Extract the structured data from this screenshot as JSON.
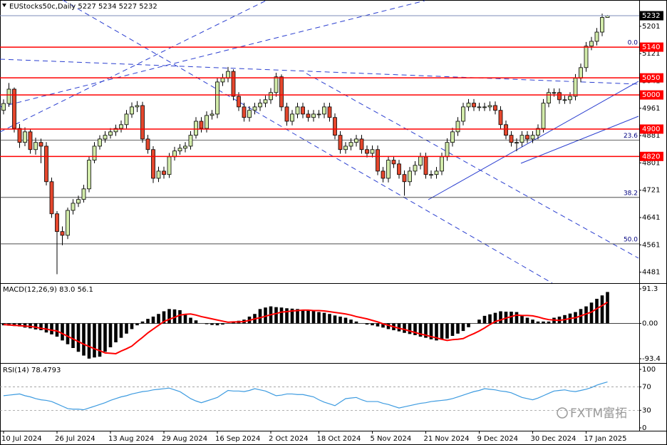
{
  "chart_data": [
    {
      "type": "candlestick",
      "title": "EUStocks50c,Daily  5227 5234 5227 5232",
      "categories": [
        "10 Jul 2024",
        null,
        null,
        null,
        null,
        null,
        null,
        null,
        null,
        null,
        "26 Jul 2024",
        null,
        null,
        null,
        null,
        null,
        null,
        null,
        null,
        null,
        "13 Aug 2024",
        null,
        null,
        null,
        null,
        null,
        null,
        null,
        null,
        null,
        "29 Aug 2024",
        null,
        null,
        null,
        null,
        null,
        null,
        null,
        null,
        null,
        "16 Sep 2024",
        null,
        null,
        null,
        null,
        null,
        null,
        null,
        null,
        null,
        "2 Oct 2024",
        null,
        null,
        null,
        null,
        null,
        null,
        null,
        null,
        "18 Oct 2024",
        null,
        null,
        null,
        null,
        null,
        null,
        null,
        null,
        null,
        "5 Nov 2024",
        null,
        null,
        null,
        null,
        null,
        null,
        null,
        null,
        null,
        "21 Nov 2024",
        null,
        null,
        null,
        null,
        null,
        null,
        null,
        null,
        null,
        "9 Dec 2024",
        null,
        null,
        null,
        null,
        null,
        null,
        null,
        null,
        null,
        "30 Dec 2024",
        null,
        null,
        null,
        null,
        null,
        null,
        null,
        null,
        null,
        "17 Jan 2025",
        null,
        null,
        null,
        null
      ],
      "open": [
        4955,
        4975,
        5017,
        4902,
        4861,
        4892,
        4840,
        4861,
        4850,
        4746,
        4652,
        4600,
        4589,
        4662,
        4683,
        4694,
        4725,
        4809,
        4850,
        4871,
        4882,
        4892,
        4902,
        4913,
        4944,
        4965,
        4969,
        4871,
        4840,
        4756,
        4777,
        4767,
        4819,
        4836,
        4844,
        4850,
        4882,
        4923,
        4902,
        4940,
        4944,
        5038,
        5049,
        5069,
        4996,
        4965,
        4934,
        4955,
        4965,
        4976,
        4986,
        5007,
        5053,
        4965,
        4923,
        4944,
        4965,
        4944,
        4934,
        4944,
        4944,
        4965,
        4934,
        4882,
        4840,
        4850,
        4861,
        4871,
        4840,
        4829,
        4840,
        4777,
        4756,
        4809,
        4798,
        4767,
        4746,
        4777,
        4794,
        4819,
        4767,
        4767,
        4777,
        4819,
        4861,
        4892,
        4923,
        4965,
        4976,
        4965,
        4965,
        4965,
        4969,
        4955,
        4913,
        4882,
        4861,
        4861,
        4882,
        4871,
        4882,
        4902,
        4976,
        5007,
        5007,
        4986,
        4986,
        4996,
        5049,
        5080,
        5143,
        5157,
        5184,
        5227
      ],
      "high": [
        4987,
        5035,
        5022,
        4915,
        4905,
        4900,
        4875,
        4872,
        4862,
        4758,
        4660,
        4615,
        4670,
        4695,
        4705,
        4737,
        4820,
        4862,
        4882,
        4894,
        4903,
        4913,
        4925,
        4956,
        4978,
        4982,
        4980,
        4883,
        4850,
        4790,
        4790,
        4830,
        4848,
        4856,
        4862,
        4894,
        4935,
        4935,
        4952,
        4956,
        5050,
        5062,
        5082,
        5075,
        5008,
        4977,
        4967,
        4977,
        4988,
        4998,
        5020,
        5065,
        5060,
        4977,
        4956,
        4977,
        4977,
        4956,
        4956,
        4956,
        4977,
        4977,
        4946,
        4894,
        4862,
        4873,
        4883,
        4883,
        4852,
        4852,
        4852,
        4789,
        4821,
        4821,
        4810,
        4779,
        4789,
        4806,
        4831,
        4831,
        4779,
        4789,
        4831,
        4873,
        4904,
        4935,
        4977,
        4988,
        4988,
        4977,
        4977,
        4981,
        4981,
        4967,
        4925,
        4894,
        4873,
        4894,
        4894,
        4894,
        4914,
        4988,
        5019,
        5019,
        5019,
        4998,
        5008,
        5061,
        5092,
        5155,
        5170,
        5196,
        5238,
        5234
      ],
      "low": [
        4943,
        4965,
        4890,
        4845,
        4850,
        4828,
        4825,
        4800,
        4735,
        4640,
        4475,
        4560,
        4578,
        4650,
        4672,
        4685,
        4715,
        4800,
        4840,
        4860,
        4872,
        4880,
        4890,
        4902,
        4933,
        4950,
        4860,
        4828,
        4742,
        4745,
        4755,
        4757,
        4808,
        4825,
        4832,
        4840,
        4872,
        4890,
        4890,
        4928,
        4932,
        5026,
        5037,
        4984,
        4953,
        4922,
        4922,
        4943,
        4953,
        4964,
        4974,
        4995,
        4953,
        4910,
        4911,
        4932,
        4932,
        4922,
        4922,
        4932,
        4932,
        4922,
        4870,
        4828,
        4828,
        4838,
        4849,
        4828,
        4817,
        4817,
        4765,
        4744,
        4744,
        4786,
        4755,
        4705,
        4734,
        4765,
        4782,
        4755,
        4755,
        4755,
        4765,
        4807,
        4849,
        4880,
        4911,
        4953,
        4953,
        4953,
        4953,
        4953,
        4943,
        4901,
        4870,
        4849,
        4835,
        4849,
        4859,
        4859,
        4870,
        4890,
        4964,
        4995,
        4974,
        4974,
        4974,
        4984,
        5037,
        5068,
        5131,
        5145,
        5172,
        5227
      ],
      "close": [
        4975,
        5017,
        4902,
        4861,
        4892,
        4840,
        4861,
        4850,
        4746,
        4652,
        4600,
        4589,
        4662,
        4683,
        4694,
        4725,
        4809,
        4850,
        4871,
        4882,
        4892,
        4902,
        4913,
        4944,
        4965,
        4969,
        4871,
        4840,
        4756,
        4777,
        4767,
        4819,
        4836,
        4844,
        4850,
        4882,
        4923,
        4902,
        4940,
        4944,
        5038,
        5049,
        5069,
        4996,
        4965,
        4934,
        4955,
        4965,
        4976,
        4986,
        5007,
        5053,
        4965,
        4923,
        4944,
        4965,
        4944,
        4934,
        4944,
        4944,
        4965,
        4934,
        4882,
        4840,
        4850,
        4861,
        4871,
        4840,
        4829,
        4840,
        4777,
        4756,
        4809,
        4798,
        4767,
        4746,
        4777,
        4794,
        4819,
        4767,
        4767,
        4777,
        4819,
        4861,
        4892,
        4923,
        4965,
        4976,
        4965,
        4965,
        4965,
        4969,
        4955,
        4913,
        4882,
        4861,
        4861,
        4882,
        4871,
        4882,
        4902,
        4976,
        5007,
        5007,
        4986,
        4986,
        4996,
        5049,
        5080,
        5143,
        5157,
        5184,
        5227,
        5232
      ],
      "up_color": "#d2ebaa",
      "down_color": "#e5472d",
      "ylim": [
        4449,
        5278
      ],
      "yticks": [
        5201,
        5121,
        5041,
        4961,
        4881,
        4801,
        4721,
        4641,
        4561,
        4481
      ],
      "price_line": {
        "value": 5232,
        "color": "#7d8bb8"
      },
      "levels": [
        {
          "value": 5140,
          "color": "#ff0000"
        },
        {
          "value": 5050,
          "color": "#ff0000"
        },
        {
          "value": 5000,
          "color": "#ff0000"
        },
        {
          "value": 4900,
          "color": "#ff0000"
        },
        {
          "value": 4820,
          "color": "#ff0000"
        }
      ],
      "fib_levels": [
        {
          "price": 5140,
          "label": "0.0"
        },
        {
          "price": 4868,
          "label": "23.6"
        },
        {
          "price": 4700,
          "label": "38.2"
        },
        {
          "price": 4564,
          "label": "50.0"
        }
      ]
    },
    {
      "type": "macd",
      "title": "MACD(12,26,9) 83.0 56.1",
      "histogram": [
        -5,
        -6,
        -7,
        -8,
        -11,
        -13,
        -16,
        -18,
        -24,
        -29,
        -35,
        -45,
        -55,
        -65,
        -75,
        -85,
        -93,
        -90,
        -88,
        -75,
        -63,
        -50,
        -38,
        -27,
        -15,
        -5,
        5,
        12,
        18,
        25,
        32,
        38,
        37,
        35,
        25,
        15,
        8,
        0,
        -2,
        -4,
        -5,
        -3,
        0,
        3,
        7,
        10,
        18,
        25,
        38,
        42,
        45,
        43,
        42,
        40,
        39,
        38,
        36,
        35,
        33,
        30,
        28,
        25,
        21,
        18,
        15,
        10,
        5,
        0,
        -3,
        -5,
        -8,
        -11,
        -15,
        -18,
        -21,
        -25,
        -28,
        -31,
        -35,
        -38,
        -42,
        -45,
        -43,
        -40,
        -33,
        -27,
        -20,
        -10,
        0,
        10,
        20,
        24,
        28,
        32,
        31,
        31,
        30,
        22,
        15,
        10,
        5,
        5,
        5,
        15,
        18,
        22,
        26,
        30,
        38,
        45,
        55,
        65,
        74,
        83
      ],
      "histogram_color": "#000000",
      "signal": [
        -3,
        -4,
        -5,
        -6,
        -7,
        -8,
        -10,
        -13,
        -15,
        -18,
        -20,
        -27,
        -34,
        -41,
        -48,
        -55,
        -61,
        -67,
        -72,
        -78,
        -79,
        -80,
        -73,
        -67,
        -60,
        -48,
        -37,
        -25,
        -15,
        -5,
        5,
        11,
        16,
        22,
        24,
        25,
        22,
        18,
        15,
        12,
        9,
        6,
        3,
        4,
        4,
        5,
        8,
        12,
        15,
        19,
        23,
        26,
        30,
        31,
        33,
        34,
        35,
        35,
        34,
        34,
        33,
        31,
        29,
        27,
        25,
        22,
        18,
        15,
        12,
        8,
        4,
        -1,
        -5,
        -9,
        -13,
        -16,
        -20,
        -24,
        -28,
        -31,
        -35,
        -38,
        -42,
        -45,
        -43,
        -42,
        -40,
        -33,
        -27,
        -20,
        -12,
        -3,
        5,
        9,
        14,
        18,
        22,
        21,
        21,
        20,
        17,
        13,
        10,
        9,
        8,
        10,
        13,
        15,
        20,
        25,
        30,
        39,
        47,
        56
      ],
      "signal_color": "#ff0000",
      "ylim": [
        -104.6,
        102.7
      ],
      "yticks": [
        91.3,
        {
          "value": 0,
          "label": "0.00"
        },
        -93.4
      ]
    },
    {
      "type": "line",
      "title": "RSI(14) 78.4793",
      "values": [
        55,
        56,
        57,
        58,
        55,
        53,
        50,
        48,
        47,
        45,
        41,
        37,
        33,
        32,
        32,
        31,
        34,
        37,
        40,
        43,
        47,
        50,
        53,
        55,
        58,
        60,
        62,
        63,
        65,
        66,
        67,
        68,
        65,
        62,
        56,
        50,
        46,
        43,
        46,
        49,
        52,
        58,
        64,
        63,
        63,
        62,
        64,
        67,
        65,
        63,
        59,
        55,
        56,
        58,
        58,
        57,
        57,
        55,
        53,
        48,
        44,
        41,
        38,
        44,
        50,
        51,
        52,
        48,
        45,
        45,
        45,
        42,
        40,
        37,
        34,
        36,
        38,
        40,
        42,
        43,
        45,
        46,
        47,
        48,
        50,
        53,
        56,
        59,
        62,
        64,
        67,
        66,
        65,
        63,
        62,
        60,
        56,
        52,
        50,
        48,
        51,
        55,
        59,
        63,
        64,
        65,
        63,
        62,
        64,
        66,
        69,
        73,
        76,
        78.5
      ],
      "color": "#3d9be0",
      "levels": [
        70,
        30
      ],
      "ylim": [
        -4.9,
        108.5
      ],
      "yticks": [
        100,
        70,
        30,
        0
      ]
    }
  ],
  "watermark": "FXTM富拓"
}
